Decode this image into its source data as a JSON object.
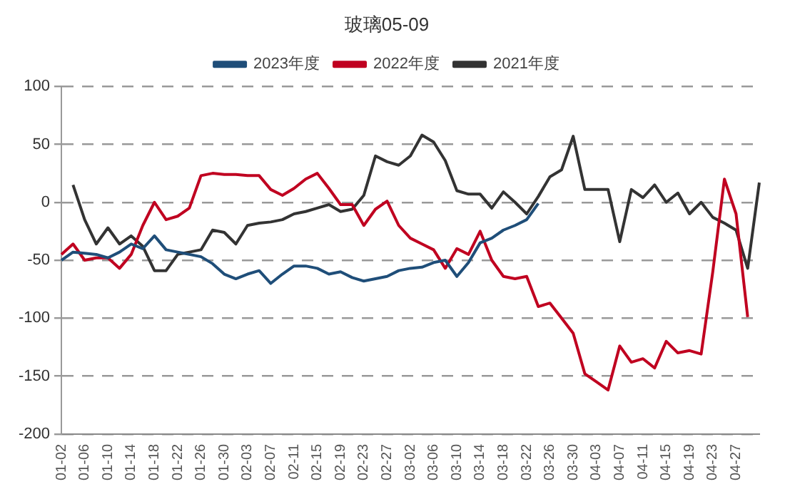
{
  "chart_data": {
    "type": "line",
    "title": "玻璃05-09",
    "categories": [
      "01-02",
      null,
      "01-06",
      null,
      "01-10",
      null,
      "01-14",
      null,
      "01-18",
      null,
      "01-22",
      null,
      "01-26",
      null,
      "01-30",
      null,
      "02-03",
      null,
      "02-07",
      null,
      "02-11",
      null,
      "02-15",
      null,
      "02-19",
      null,
      "02-23",
      null,
      "02-27",
      null,
      "03-02",
      null,
      "03-06",
      null,
      "03-10",
      null,
      "03-14",
      null,
      "03-18",
      null,
      "03-22",
      null,
      "03-26",
      null,
      "03-30",
      null,
      "04-03",
      null,
      "04-07",
      null,
      "04-11",
      null,
      "04-15",
      null,
      "04-19",
      null,
      "04-23",
      null,
      "04-27",
      null,
      null
    ],
    "series": [
      {
        "name": "2023年度",
        "color": "#1f4e79",
        "values": [
          -50,
          -43,
          -44,
          -45,
          -48,
          -43,
          -36,
          -40,
          -29,
          -41,
          -43,
          -45,
          -47,
          -53,
          -62,
          -66,
          -62,
          -59,
          -70,
          -62,
          -55,
          -55,
          -57,
          -62,
          -60,
          -65,
          -68,
          -66,
          -64,
          -59,
          -57,
          -56,
          -52,
          -50,
          -64,
          -52,
          -35,
          -31,
          -24,
          -20,
          -15,
          -1,
          null,
          null,
          null,
          null,
          null,
          null,
          null,
          null,
          null,
          null,
          null,
          null,
          null,
          null,
          null,
          null,
          null,
          null,
          null
        ]
      },
      {
        "name": "2022年度",
        "color": "#c00020",
        "values": [
          -45,
          -36,
          -50,
          -48,
          -48,
          -57,
          -45,
          -20,
          0,
          -15,
          -12,
          -5,
          23,
          25,
          24,
          24,
          23,
          23,
          11,
          6,
          12,
          20,
          25,
          12,
          -2,
          -2,
          -20,
          -6,
          1,
          -20,
          -31,
          -36,
          -41,
          -57,
          -40,
          -45,
          -25,
          -50,
          -64,
          -66,
          -64,
          -90,
          -87,
          -100,
          -113,
          -148,
          -155,
          -162,
          -124,
          -138,
          -135,
          -143,
          -120,
          -130,
          -128,
          -131,
          -60,
          20,
          -10,
          -99,
          null
        ]
      },
      {
        "name": "2021年度",
        "color": "#333333",
        "values": [
          null,
          15,
          -15,
          -36,
          -22,
          -36,
          -29,
          -38,
          -59,
          -59,
          -45,
          -43,
          -41,
          -24,
          -26,
          -36,
          -20,
          -18,
          -17,
          -15,
          -10,
          -8,
          -5,
          -2,
          -8,
          -6,
          6,
          40,
          35,
          32,
          40,
          58,
          52,
          36,
          10,
          7,
          7,
          -5,
          9,
          0,
          -10,
          5,
          22,
          28,
          57,
          11,
          11,
          11,
          -34,
          11,
          4,
          15,
          0,
          8,
          -10,
          0,
          -13,
          -18,
          -24,
          -57,
          17
        ]
      }
    ],
    "ylim": [
      -200,
      100
    ],
    "yticks": [
      -200,
      -150,
      -100,
      -50,
      0,
      50,
      100
    ],
    "grid": "y",
    "legend": "top",
    "marker": "none",
    "line_style": "solid"
  }
}
